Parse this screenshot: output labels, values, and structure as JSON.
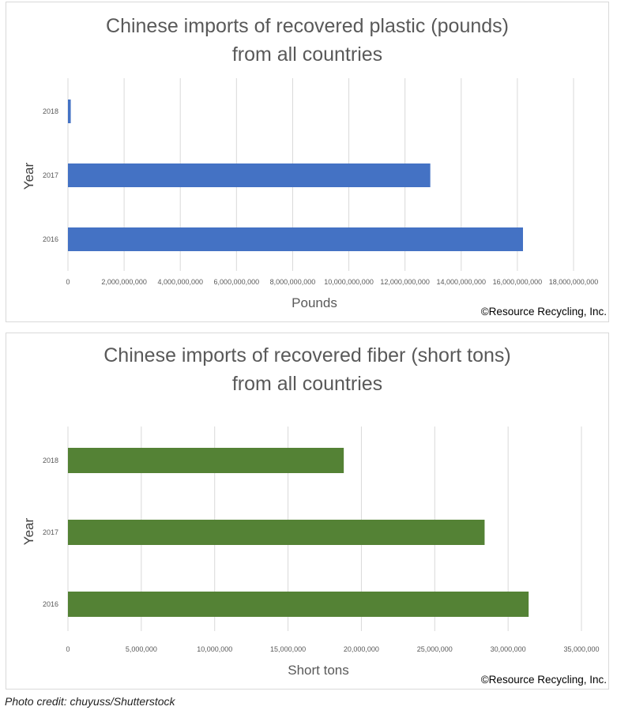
{
  "chart_data": [
    {
      "type": "bar",
      "orientation": "horizontal",
      "title_lines": [
        "Chinese imports of recovered plastic (pounds)",
        "from all countries"
      ],
      "xlabel": "Pounds",
      "ylabel": "Year",
      "categories": [
        "2018",
        "2017",
        "2016"
      ],
      "values": [
        100000000,
        12900000000,
        16200000000
      ],
      "xlim": [
        0,
        18000000000
      ],
      "xticks": [
        0,
        2000000000,
        4000000000,
        6000000000,
        8000000000,
        10000000000,
        12000000000,
        14000000000,
        16000000000,
        18000000000
      ],
      "xtick_labels": [
        "0",
        "2,000,000,000",
        "4,000,000,000",
        "6,000,000,000",
        "8,000,000,000",
        "10,000,000,000",
        "12,000,000,000",
        "14,000,000,000",
        "16,000,000,000",
        "18,000,000,000"
      ],
      "grid": "vertical",
      "color": "#4472c4",
      "copyright": "©Resource Recycling, Inc."
    },
    {
      "type": "bar",
      "orientation": "horizontal",
      "title_lines": [
        "Chinese imports of recovered fiber (short tons)",
        "from all countries"
      ],
      "xlabel": "Short tons",
      "ylabel": "Year",
      "categories": [
        "2018",
        "2017",
        "2016"
      ],
      "values": [
        18800000,
        28400000,
        31400000
      ],
      "xlim": [
        0,
        35000000
      ],
      "xticks": [
        0,
        5000000,
        10000000,
        15000000,
        20000000,
        25000000,
        30000000,
        35000000
      ],
      "xtick_labels": [
        "0",
        "5,000,000",
        "10,000,000",
        "15,000,000",
        "20,000,000",
        "25,000,000",
        "30,000,000",
        "35,000,000"
      ],
      "grid": "vertical",
      "color": "#548235",
      "copyright": "©Resource Recycling, Inc."
    }
  ],
  "credit": "Photo credit: chuyuss/Shutterstock"
}
